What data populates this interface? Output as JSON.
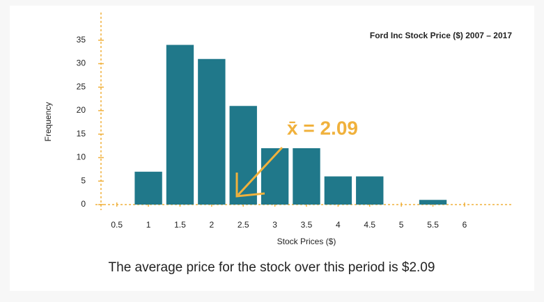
{
  "chart_data": {
    "type": "histogram",
    "title": "Ford Inc Stock Price ($) 2007 – 2017",
    "xlabel": "Stock Prices ($)",
    "ylabel": "Frequency",
    "annotation": "x̄ = 2.09",
    "caption": "The average price for the stock over this period is $2.09",
    "bins": [
      0.75,
      1.25,
      1.75,
      2.25,
      2.75,
      3.25,
      3.75,
      4.25,
      4.75,
      5.25,
      5.75
    ],
    "values": [
      7,
      34,
      31,
      21,
      12,
      12,
      6,
      6,
      0,
      1
    ],
    "color": "#20788a",
    "axis_color": "#f0b13c",
    "xlim": [
      0.25,
      6.75
    ],
    "xticks": [
      0.5,
      1,
      1.5,
      2,
      2.5,
      3,
      3.5,
      4,
      4.5,
      5,
      5.5,
      6
    ],
    "ylim": [
      0,
      40
    ],
    "yticks": [
      0,
      5,
      10,
      15,
      20,
      25,
      30,
      35
    ]
  }
}
